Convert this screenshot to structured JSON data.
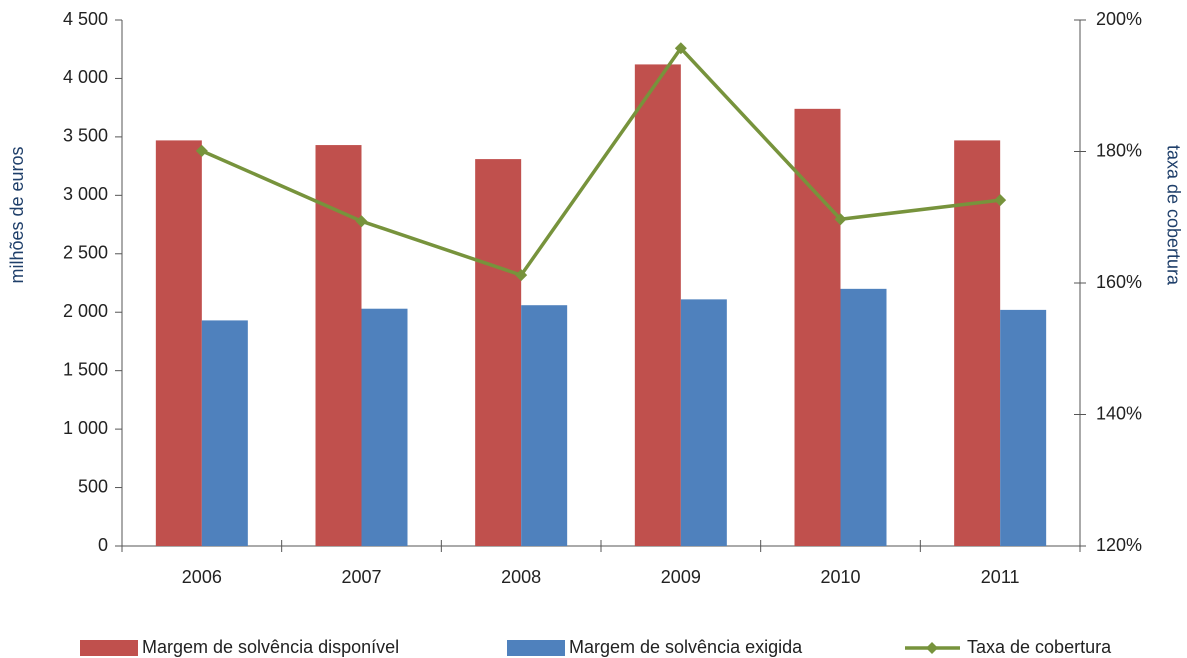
{
  "chart_data": {
    "type": "bar",
    "categories": [
      "2006",
      "2007",
      "2008",
      "2009",
      "2010",
      "2011"
    ],
    "series": [
      {
        "name": "Margem de solvência disponível",
        "color": "#c0504d",
        "type": "bar",
        "values": [
          3470,
          3430,
          3310,
          4120,
          3740,
          3470
        ]
      },
      {
        "name": "Margem de solvência exigida",
        "color": "#4f81bd",
        "type": "bar",
        "values": [
          1930,
          2030,
          2060,
          2110,
          2200,
          2020
        ]
      },
      {
        "name": "Taxa de cobertura",
        "color": "#77933c",
        "type": "line",
        "axis": "y2",
        "values": [
          180.1,
          169.4,
          161.2,
          195.7,
          169.7,
          172.6
        ]
      }
    ],
    "ylabel": "milhões de euros",
    "y2label": "taxa de cobertura",
    "ylim": [
      0,
      4500
    ],
    "yticks": [
      0,
      500,
      {
        "value": 1000,
        "label": "1 000"
      },
      {
        "value": 1500,
        "label": "1 500"
      },
      {
        "value": 2000,
        "label": "2 000"
      },
      {
        "value": 2500,
        "label": "2 500"
      },
      {
        "value": 3000,
        "label": "3 000"
      },
      {
        "value": 3500,
        "label": "3 500"
      },
      {
        "value": 4000,
        "label": "4 000"
      },
      {
        "value": 4500,
        "label": "4 500"
      }
    ],
    "y2lim": [
      120,
      200
    ],
    "y2ticks": [
      {
        "value": 120,
        "label": "120%"
      },
      {
        "value": 140,
        "label": "140%"
      },
      {
        "value": 160,
        "label": "160%"
      },
      {
        "value": 180,
        "label": "180%"
      },
      {
        "value": 200,
        "label": "200%"
      }
    ],
    "legend": "bottom",
    "grid": false
  }
}
